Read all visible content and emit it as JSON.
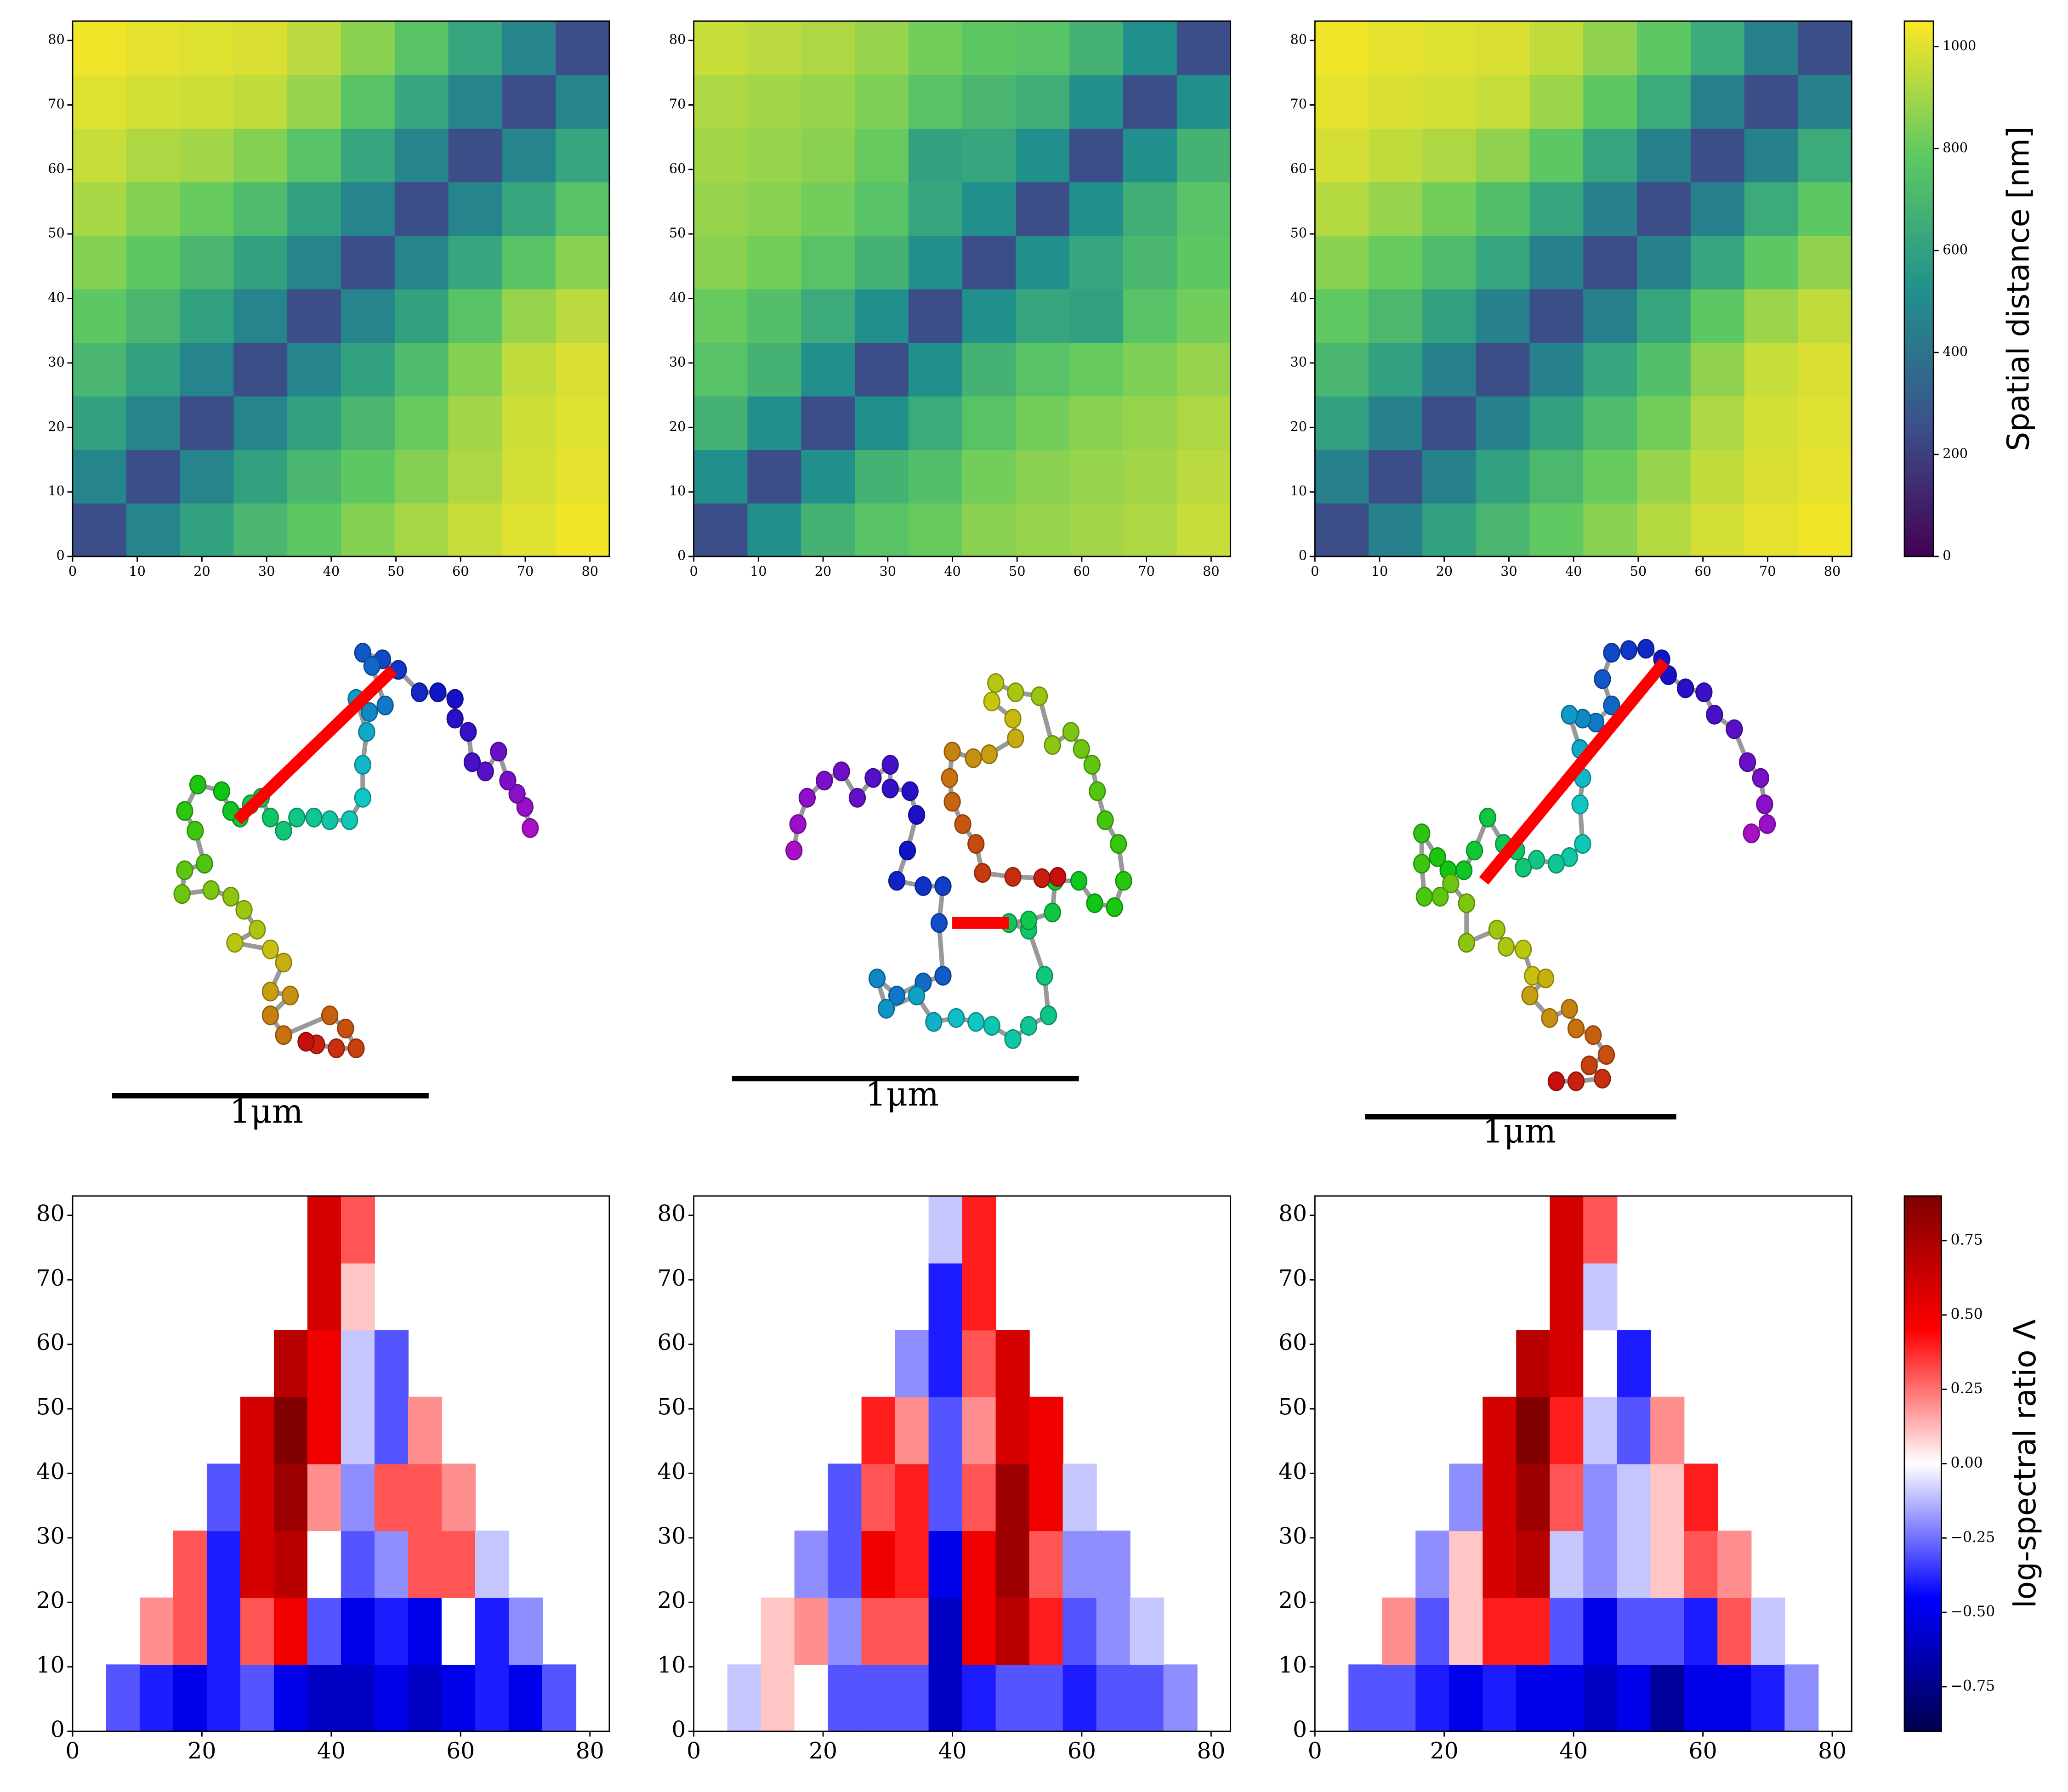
{
  "chart_data": [
    {
      "type": "heatmap",
      "colormap": "viridis",
      "zlim": [
        0,
        1050
      ],
      "xlim": [
        0,
        83
      ],
      "ylim": [
        0,
        83
      ],
      "xticks": [
        0,
        10,
        20,
        30,
        40,
        50,
        60,
        70,
        80
      ],
      "yticks": [
        0,
        10,
        20,
        30,
        40,
        50,
        60,
        70,
        80
      ],
      "values": [
        [
          250,
          470,
          600,
          700,
          780,
          850,
          910,
          960,
          1000,
          1030
        ],
        [
          470,
          250,
          470,
          600,
          700,
          780,
          850,
          920,
          980,
          1010
        ],
        [
          600,
          470,
          250,
          470,
          600,
          700,
          800,
          900,
          970,
          1000
        ],
        [
          700,
          600,
          470,
          250,
          470,
          600,
          720,
          850,
          950,
          990
        ],
        [
          780,
          700,
          600,
          470,
          250,
          470,
          600,
          760,
          880,
          940
        ],
        [
          850,
          780,
          700,
          600,
          470,
          250,
          470,
          620,
          760,
          860
        ],
        [
          910,
          850,
          800,
          720,
          600,
          470,
          250,
          470,
          620,
          760
        ],
        [
          960,
          920,
          900,
          850,
          760,
          620,
          470,
          250,
          470,
          620
        ],
        [
          1000,
          980,
          970,
          950,
          880,
          760,
          620,
          470,
          250,
          470
        ],
        [
          1030,
          1010,
          1000,
          990,
          940,
          860,
          760,
          620,
          470,
          250
        ]
      ]
    },
    {
      "type": "heatmap",
      "colormap": "viridis",
      "zlim": [
        0,
        1050
      ],
      "xlim": [
        0,
        83
      ],
      "ylim": [
        0,
        83
      ],
      "xticks": [
        0,
        10,
        20,
        30,
        40,
        50,
        60,
        70,
        80
      ],
      "yticks": [
        0,
        10,
        20,
        30,
        40,
        50,
        60,
        70,
        80
      ],
      "values": [
        [
          250,
          520,
          680,
          760,
          800,
          860,
          880,
          900,
          920,
          960
        ],
        [
          520,
          250,
          520,
          680,
          740,
          820,
          860,
          880,
          900,
          940
        ],
        [
          680,
          520,
          250,
          520,
          640,
          760,
          820,
          860,
          880,
          920
        ],
        [
          760,
          680,
          520,
          250,
          520,
          680,
          760,
          800,
          840,
          880
        ],
        [
          800,
          740,
          640,
          520,
          250,
          520,
          620,
          600,
          760,
          820
        ],
        [
          860,
          820,
          760,
          680,
          520,
          250,
          520,
          620,
          700,
          780
        ],
        [
          880,
          860,
          820,
          760,
          620,
          520,
          250,
          520,
          660,
          760
        ],
        [
          900,
          880,
          860,
          800,
          600,
          620,
          520,
          250,
          520,
          680
        ],
        [
          920,
          900,
          880,
          840,
          760,
          700,
          660,
          520,
          250,
          520
        ],
        [
          960,
          940,
          920,
          880,
          820,
          780,
          760,
          680,
          520,
          250
        ]
      ]
    },
    {
      "type": "heatmap",
      "colormap": "viridis",
      "zlim": [
        0,
        1050
      ],
      "xlim": [
        0,
        83
      ],
      "ylim": [
        0,
        83
      ],
      "xticks": [
        0,
        10,
        20,
        30,
        40,
        50,
        60,
        70,
        80
      ],
      "yticks": [
        0,
        10,
        20,
        30,
        40,
        50,
        60,
        70,
        80
      ],
      "values": [
        [
          250,
          460,
          600,
          700,
          790,
          860,
          930,
          980,
          1010,
          1030
        ],
        [
          460,
          250,
          460,
          600,
          710,
          800,
          880,
          950,
          990,
          1010
        ],
        [
          600,
          460,
          250,
          460,
          600,
          720,
          820,
          920,
          980,
          1000
        ],
        [
          700,
          600,
          460,
          250,
          460,
          620,
          740,
          870,
          960,
          990
        ],
        [
          790,
          710,
          600,
          460,
          250,
          460,
          620,
          780,
          890,
          950
        ],
        [
          860,
          800,
          720,
          620,
          460,
          250,
          460,
          620,
          780,
          870
        ],
        [
          930,
          880,
          820,
          740,
          620,
          460,
          250,
          460,
          640,
          780
        ],
        [
          980,
          950,
          920,
          870,
          780,
          620,
          460,
          250,
          460,
          640
        ],
        [
          1010,
          990,
          980,
          960,
          890,
          780,
          640,
          460,
          250,
          460
        ],
        [
          1030,
          1010,
          1000,
          990,
          950,
          870,
          780,
          640,
          460,
          250
        ]
      ]
    },
    {
      "type": "colorbar",
      "colormap": "viridis",
      "zlim": [
        0,
        1050
      ],
      "zticks": [
        0,
        200,
        400,
        600,
        800,
        1000
      ],
      "label": "Spatial distance [nm]"
    },
    {
      "type": "heatmap",
      "colormap": "seismic",
      "zlim": [
        -0.9,
        0.9
      ],
      "xlim": [
        0,
        83
      ],
      "ylim": [
        0,
        83
      ],
      "xticks": [
        0,
        20,
        40,
        60,
        80
      ],
      "yticks": [
        0,
        10,
        20,
        30,
        40,
        50,
        60,
        70,
        80
      ],
      "values": [
        [
          null,
          -0.3,
          -0.4,
          -0.5,
          -0.4,
          -0.3,
          -0.5,
          -0.6,
          -0.6,
          -0.5,
          -0.6,
          -0.5,
          -0.4,
          -0.5,
          -0.3,
          null
        ],
        [
          null,
          null,
          0.2,
          0.3,
          -0.4,
          0.3,
          0.5,
          -0.3,
          -0.5,
          -0.4,
          -0.5,
          0.0,
          -0.4,
          -0.2,
          null,
          null
        ],
        [
          null,
          null,
          null,
          0.3,
          -0.4,
          0.6,
          0.7,
          0.0,
          -0.3,
          -0.2,
          0.3,
          0.3,
          -0.1,
          null,
          null,
          null
        ],
        [
          null,
          null,
          null,
          null,
          -0.3,
          0.6,
          0.8,
          0.2,
          -0.2,
          0.3,
          0.3,
          0.2,
          null,
          null,
          null,
          null
        ],
        [
          null,
          null,
          null,
          null,
          null,
          0.6,
          0.9,
          0.5,
          -0.1,
          -0.3,
          0.2,
          null,
          null,
          null,
          null,
          null
        ],
        [
          null,
          null,
          null,
          null,
          null,
          null,
          0.7,
          0.5,
          -0.1,
          -0.3,
          null,
          null,
          null,
          null,
          null,
          null
        ],
        [
          null,
          null,
          null,
          null,
          null,
          null,
          null,
          0.6,
          0.1,
          null,
          null,
          null,
          null,
          null,
          null,
          null
        ],
        [
          null,
          null,
          null,
          null,
          null,
          null,
          null,
          0.6,
          0.3,
          null,
          null,
          null,
          null,
          null,
          null,
          null
        ]
      ]
    },
    {
      "type": "heatmap",
      "colormap": "seismic",
      "zlim": [
        -0.9,
        0.9
      ],
      "xlim": [
        0,
        83
      ],
      "ylim": [
        0,
        83
      ],
      "xticks": [
        0,
        20,
        40,
        60,
        80
      ],
      "yticks": [
        0,
        10,
        20,
        30,
        40,
        50,
        60,
        70,
        80
      ],
      "values": [
        [
          null,
          -0.1,
          0.1,
          0.0,
          -0.3,
          -0.3,
          -0.3,
          -0.6,
          -0.4,
          -0.3,
          -0.3,
          -0.4,
          -0.3,
          -0.3,
          -0.2,
          null
        ],
        [
          null,
          null,
          0.1,
          0.2,
          -0.2,
          0.3,
          0.3,
          -0.6,
          0.5,
          0.7,
          0.4,
          -0.3,
          -0.2,
          -0.1,
          null,
          null
        ],
        [
          null,
          null,
          null,
          -0.2,
          -0.3,
          0.5,
          0.4,
          -0.5,
          0.5,
          0.8,
          0.3,
          -0.2,
          -0.2,
          null,
          null,
          null
        ],
        [
          null,
          null,
          null,
          null,
          -0.3,
          0.3,
          0.4,
          -0.3,
          0.3,
          0.8,
          0.5,
          -0.1,
          null,
          null,
          null,
          null
        ],
        [
          null,
          null,
          null,
          null,
          null,
          0.4,
          0.2,
          -0.3,
          0.2,
          0.6,
          0.5,
          null,
          null,
          null,
          null,
          null
        ],
        [
          null,
          null,
          null,
          null,
          null,
          null,
          -0.2,
          -0.4,
          0.3,
          0.6,
          null,
          null,
          null,
          null,
          null,
          null
        ],
        [
          null,
          null,
          null,
          null,
          null,
          null,
          null,
          -0.4,
          0.4,
          null,
          null,
          null,
          null,
          null,
          null,
          null
        ],
        [
          null,
          null,
          null,
          null,
          null,
          null,
          null,
          -0.1,
          0.4,
          null,
          null,
          null,
          null,
          null,
          null,
          null
        ]
      ]
    },
    {
      "type": "heatmap",
      "colormap": "seismic",
      "zlim": [
        -0.9,
        0.9
      ],
      "xlim": [
        0,
        83
      ],
      "ylim": [
        0,
        83
      ],
      "xticks": [
        0,
        20,
        40,
        60,
        80
      ],
      "yticks": [
        0,
        10,
        20,
        30,
        40,
        50,
        60,
        70,
        80
      ],
      "values": [
        [
          null,
          -0.3,
          -0.3,
          -0.4,
          -0.5,
          -0.4,
          -0.5,
          -0.5,
          -0.6,
          -0.5,
          -0.7,
          -0.5,
          -0.5,
          -0.4,
          -0.2,
          null
        ],
        [
          null,
          null,
          0.2,
          -0.3,
          0.1,
          0.4,
          0.4,
          -0.3,
          -0.5,
          -0.3,
          -0.3,
          -0.4,
          0.3,
          -0.1,
          null,
          null
        ],
        [
          null,
          null,
          null,
          -0.2,
          0.1,
          0.6,
          0.7,
          -0.1,
          -0.2,
          -0.1,
          0.1,
          0.3,
          0.2,
          null,
          null,
          null
        ],
        [
          null,
          null,
          null,
          null,
          -0.2,
          0.6,
          0.8,
          0.3,
          -0.2,
          -0.1,
          0.1,
          0.4,
          null,
          null,
          null,
          null
        ],
        [
          null,
          null,
          null,
          null,
          null,
          0.6,
          0.9,
          0.4,
          -0.1,
          -0.3,
          0.2,
          null,
          null,
          null,
          null,
          null
        ],
        [
          null,
          null,
          null,
          null,
          null,
          null,
          0.7,
          0.6,
          0.0,
          -0.4,
          null,
          null,
          null,
          null,
          null,
          null
        ],
        [
          null,
          null,
          null,
          null,
          null,
          null,
          null,
          0.6,
          -0.1,
          null,
          null,
          null,
          null,
          null,
          null,
          null
        ],
        [
          null,
          null,
          null,
          null,
          null,
          null,
          null,
          0.6,
          0.3,
          null,
          null,
          null,
          null,
          null,
          null,
          null
        ]
      ]
    },
    {
      "type": "colorbar",
      "colormap": "seismic",
      "zlim": [
        -0.9,
        0.9
      ],
      "zticks": [
        {
          "value": -0.75,
          "label": "−0.75"
        },
        {
          "value": -0.5,
          "label": "−0.50"
        },
        {
          "value": -0.25,
          "label": "−0.25"
        },
        {
          "value": 0,
          "label": "0.00"
        },
        0.25,
        {
          "value": 0.5,
          "label": "0.50"
        },
        0.75
      ],
      "label": "log-spectral ratio Λ"
    }
  ],
  "scale_bars": [
    "1μm",
    "1μm",
    "1μm"
  ]
}
